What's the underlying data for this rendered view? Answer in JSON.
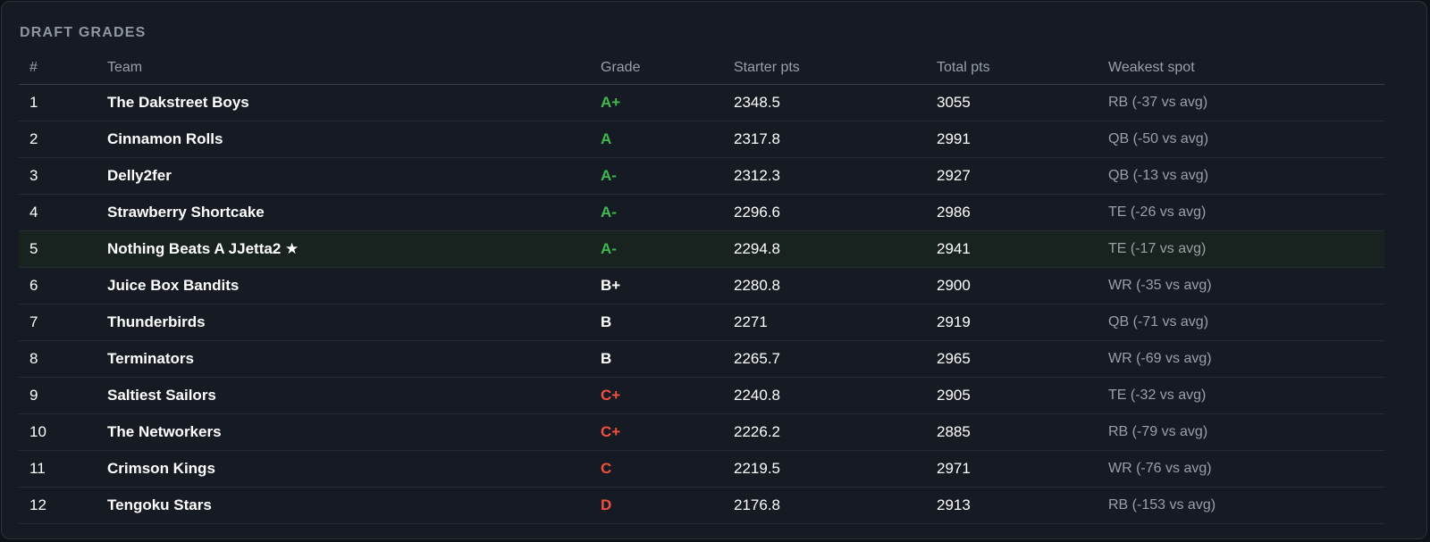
{
  "title": "DRAFT GRADES",
  "table": {
    "headers": [
      "#",
      "Team",
      "Grade",
      "Starter pts",
      "Total pts",
      "Weakest spot"
    ],
    "rows": [
      [
        1,
        "The Dakstreet Boys",
        "A+",
        2348.5,
        3055,
        "RB (-37 vs avg)"
      ],
      [
        2,
        "Cinnamon Rolls",
        "A",
        2317.8,
        2991,
        "QB (-50 vs avg)"
      ],
      [
        3,
        "Delly2fer",
        "A-",
        2312.3,
        2927,
        "QB (-13 vs avg)"
      ],
      [
        4,
        "Strawberry Shortcake",
        "A-",
        2296.6,
        2986,
        "TE (-26 vs avg)"
      ],
      [
        5,
        "Nothing Beats A JJetta2 ★",
        "A-",
        2294.8,
        2941,
        "TE (-17 vs avg)"
      ],
      [
        6,
        "Juice Box Bandits",
        "B+",
        2280.8,
        2900,
        "WR (-35 vs avg)"
      ],
      [
        7,
        "Thunderbirds",
        "B",
        2271,
        2919,
        "QB (-71 vs avg)"
      ],
      [
        8,
        "Terminators",
        "B",
        2265.7,
        2965,
        "WR (-69 vs avg)"
      ],
      [
        9,
        "Saltiest Sailors",
        "C+",
        2240.8,
        2905,
        "TE (-32 vs avg)"
      ],
      [
        10,
        "The Networkers",
        "C+",
        2226.2,
        2885,
        "RB (-79 vs avg)"
      ],
      [
        11,
        "Crimson Kings",
        "C",
        2219.5,
        2971,
        "WR (-76 vs avg)"
      ],
      [
        12,
        "Tengoku Stars",
        "D",
        2176.8,
        2913,
        "RB (-153 vs avg)"
      ]
    ]
  }
}
